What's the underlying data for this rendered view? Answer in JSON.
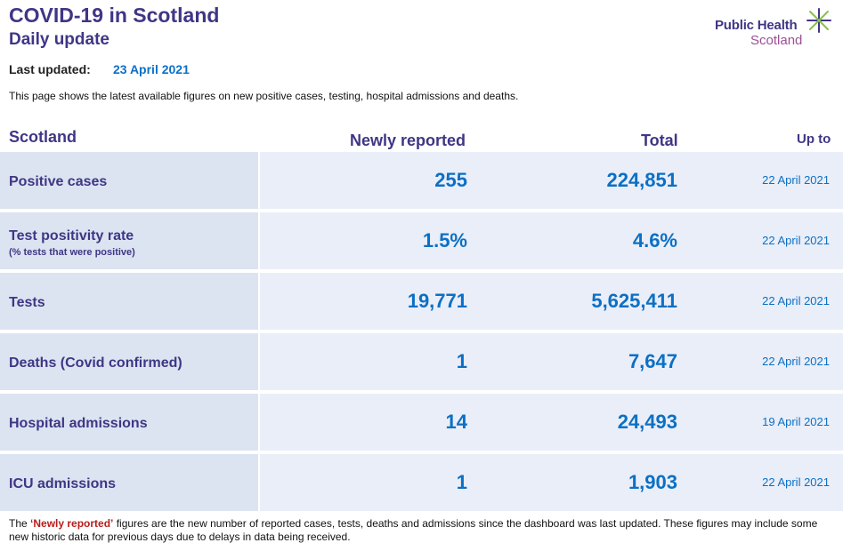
{
  "header": {
    "title": "COVID-19 in Scotland",
    "subtitle": "Daily update",
    "last_updated_label": "Last updated:",
    "last_updated_value": "23 April 2021",
    "intro": "This page shows the latest available figures on new positive cases, testing, hospital admissions and deaths."
  },
  "logo": {
    "line1": "Public Health",
    "line2": "Scotland",
    "star_color": "#8ac14a"
  },
  "table": {
    "columns": {
      "region": "Scotland",
      "new": "Newly reported",
      "total": "Total",
      "upto": "Up to"
    },
    "rows": [
      {
        "label": "Positive cases",
        "sublabel": "",
        "new": "255",
        "total": "224,851",
        "upto": "22 April 2021"
      },
      {
        "label": "Test positivity rate",
        "sublabel": "(% tests that were positive)",
        "new": "1.5%",
        "total": "4.6%",
        "upto": "22 April 2021"
      },
      {
        "label": "Tests",
        "sublabel": "",
        "new": "19,771",
        "total": "5,625,411",
        "upto": "22 April 2021"
      },
      {
        "label": "Deaths (Covid confirmed)",
        "sublabel": "",
        "new": "1",
        "total": "7,647",
        "upto": "22 April 2021"
      },
      {
        "label": "Hospital admissions",
        "sublabel": "",
        "new": "14",
        "total": "24,493",
        "upto": "19 April 2021"
      },
      {
        "label": "ICU admissions",
        "sublabel": "",
        "new": "1",
        "total": "1,903",
        "upto": "22 April 2021"
      }
    ]
  },
  "footnote": {
    "prefix": "The ",
    "emphasis": "‘Newly reported’",
    "rest": " figures are the new number of reported cases, tests, deaths and admissions since the dashboard was last updated. These figures may include some new historic data for previous days due to delays in data being received."
  },
  "colors": {
    "brand_purple": "#3f3685",
    "value_blue": "#0b70c5",
    "label_cell": "#dce4f1",
    "data_cell": "#eaeef8",
    "emphasis_red": "#b71c1c"
  }
}
